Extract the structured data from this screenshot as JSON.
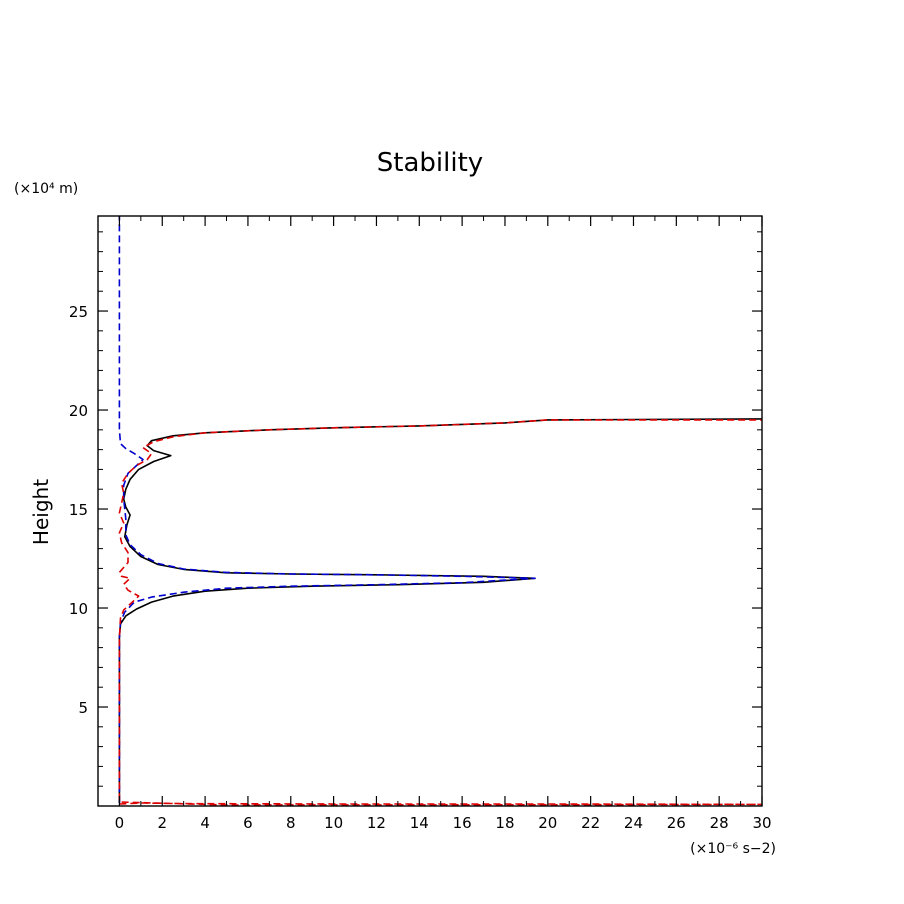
{
  "chart_data": {
    "type": "line",
    "title": "Stability",
    "xlabel": "",
    "ylabel": "Height",
    "x_unit_label": "(×10⁻⁶ s−2)",
    "y_unit_label": "(×10⁴ m)",
    "xlim": [
      -1,
      30
    ],
    "ylim": [
      0,
      29.8
    ],
    "x_ticks": [
      0,
      2,
      4,
      6,
      8,
      10,
      12,
      14,
      16,
      18,
      20,
      22,
      24,
      26,
      28,
      30
    ],
    "x_tick_labels": [
      "0",
      "2",
      "4",
      "6",
      "8",
      "10",
      "12",
      "14",
      "16",
      "18",
      "20",
      "22",
      "24",
      "26",
      "28",
      "30"
    ],
    "y_ticks": [
      5,
      10,
      15,
      20,
      25
    ],
    "y_tick_labels": [
      "5",
      "10",
      "15",
      "20",
      "25"
    ],
    "grid": false,
    "series": [
      {
        "name": "black-solid",
        "color": "#000000",
        "dash": "solid",
        "points": [
          [
            0,
            0.15
          ],
          [
            0,
            8.5
          ],
          [
            0.05,
            9.2
          ],
          [
            0.3,
            9.6
          ],
          [
            0.8,
            9.95
          ],
          [
            1.5,
            10.3
          ],
          [
            2.5,
            10.6
          ],
          [
            4,
            10.85
          ],
          [
            6,
            11.0
          ],
          [
            9,
            11.1
          ],
          [
            13,
            11.18
          ],
          [
            17,
            11.3
          ],
          [
            19.4,
            11.5
          ],
          [
            17,
            11.6
          ],
          [
            12,
            11.68
          ],
          [
            8,
            11.72
          ],
          [
            5,
            11.78
          ],
          [
            3,
            11.95
          ],
          [
            1.8,
            12.2
          ],
          [
            1,
            12.6
          ],
          [
            0.5,
            13.1
          ],
          [
            0.25,
            13.6
          ],
          [
            0.35,
            14.2
          ],
          [
            0.5,
            14.7
          ],
          [
            0.3,
            15.1
          ],
          [
            0.2,
            15.5
          ],
          [
            0.3,
            16.0
          ],
          [
            0.5,
            16.5
          ],
          [
            0.9,
            17.0
          ],
          [
            1.6,
            17.4
          ],
          [
            2.4,
            17.7
          ],
          [
            1.6,
            17.95
          ],
          [
            1.3,
            18.2
          ],
          [
            1.5,
            18.45
          ],
          [
            2.5,
            18.7
          ],
          [
            4,
            18.85
          ],
          [
            7,
            19.0
          ],
          [
            10,
            19.1
          ],
          [
            14,
            19.2
          ],
          [
            18,
            19.35
          ],
          [
            20,
            19.5
          ],
          [
            30,
            19.55
          ]
        ]
      },
      {
        "name": "blue-dashed",
        "color": "#0000cc",
        "dash": "7,4",
        "points": [
          [
            0,
            0.15
          ],
          [
            0,
            8.5
          ],
          [
            0.05,
            9.3
          ],
          [
            0.25,
            9.8
          ],
          [
            0.7,
            10.3
          ],
          [
            1.5,
            10.55
          ],
          [
            3,
            10.8
          ],
          [
            5,
            11.0
          ],
          [
            8,
            11.1
          ],
          [
            12,
            11.18
          ],
          [
            16,
            11.28
          ],
          [
            19.4,
            11.5
          ],
          [
            16,
            11.6
          ],
          [
            12,
            11.68
          ],
          [
            8,
            11.72
          ],
          [
            5,
            11.8
          ],
          [
            3,
            11.97
          ],
          [
            1.8,
            12.25
          ],
          [
            1,
            12.7
          ],
          [
            0.5,
            13.2
          ],
          [
            0.3,
            13.7
          ],
          [
            0.3,
            14.5
          ],
          [
            0.2,
            15.5
          ],
          [
            0.2,
            16.2
          ],
          [
            0.4,
            16.8
          ],
          [
            0.8,
            17.2
          ],
          [
            1.1,
            17.5
          ],
          [
            0.7,
            17.8
          ],
          [
            0.3,
            18.05
          ],
          [
            0.05,
            18.3
          ],
          [
            0,
            19.0
          ],
          [
            0,
            29.8
          ]
        ]
      },
      {
        "name": "red-dashed",
        "color": "#dd0000",
        "dash": "7,4",
        "points": [
          [
            0,
            0.1
          ],
          [
            1,
            0.15
          ],
          [
            3,
            0.12
          ],
          [
            10,
            0.1
          ],
          [
            20,
            0.1
          ],
          [
            30,
            0.08
          ],
          [
            20,
            0.06
          ],
          [
            5,
            0.05
          ],
          [
            0,
            0.2
          ],
          [
            0,
            8.5
          ],
          [
            0.05,
            9.5
          ],
          [
            0.2,
            9.9
          ],
          [
            0.6,
            10.3
          ],
          [
            0.9,
            10.6
          ],
          [
            0.4,
            10.9
          ],
          [
            0.2,
            11.2
          ],
          [
            0.5,
            11.5
          ],
          [
            0.1,
            11.6
          ],
          [
            0,
            11.8
          ],
          [
            0.4,
            12.3
          ],
          [
            0.4,
            12.8
          ],
          [
            0.1,
            13.3
          ],
          [
            0,
            13.8
          ],
          [
            0.2,
            14.3
          ],
          [
            0,
            14.8
          ],
          [
            0.1,
            15.3
          ],
          [
            0.2,
            15.8
          ],
          [
            0.1,
            16.3
          ],
          [
            0.4,
            16.8
          ],
          [
            0.8,
            17.2
          ],
          [
            1.3,
            17.5
          ],
          [
            1.5,
            17.8
          ],
          [
            1.1,
            18.1
          ],
          [
            1.6,
            18.4
          ],
          [
            2.5,
            18.65
          ],
          [
            4,
            18.85
          ],
          [
            7,
            19.0
          ],
          [
            10,
            19.1
          ],
          [
            14,
            19.2
          ],
          [
            18,
            19.35
          ],
          [
            20,
            19.5
          ],
          [
            30,
            19.5
          ]
        ]
      }
    ]
  }
}
